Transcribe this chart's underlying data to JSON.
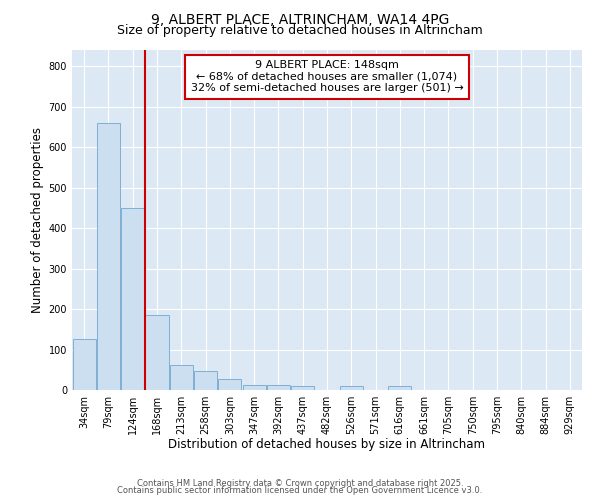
{
  "title1": "9, ALBERT PLACE, ALTRINCHAM, WA14 4PG",
  "title2": "Size of property relative to detached houses in Altrincham",
  "xlabel": "Distribution of detached houses by size in Altrincham",
  "ylabel": "Number of detached properties",
  "categories": [
    "34sqm",
    "79sqm",
    "124sqm",
    "168sqm",
    "213sqm",
    "258sqm",
    "303sqm",
    "347sqm",
    "392sqm",
    "437sqm",
    "482sqm",
    "526sqm",
    "571sqm",
    "616sqm",
    "661sqm",
    "705sqm",
    "750sqm",
    "795sqm",
    "840sqm",
    "884sqm",
    "929sqm"
  ],
  "values": [
    125,
    660,
    450,
    185,
    62,
    46,
    27,
    12,
    12,
    9,
    0,
    9,
    0,
    9,
    0,
    0,
    0,
    0,
    0,
    0,
    0
  ],
  "bar_color": "#ccdff0",
  "bar_edge_color": "#7eb0d4",
  "red_line_x": 2.5,
  "annotation_title": "9 ALBERT PLACE: 148sqm",
  "annotation_line1": "← 68% of detached houses are smaller (1,074)",
  "annotation_line2": "32% of semi-detached houses are larger (501) →",
  "annotation_box_color": "#ffffff",
  "annotation_box_edge": "#cc0000",
  "red_line_color": "#cc0000",
  "ylim": [
    0,
    840
  ],
  "yticks": [
    0,
    100,
    200,
    300,
    400,
    500,
    600,
    700,
    800
  ],
  "bg_color": "#dce9f5",
  "grid_color": "#ffffff",
  "footer1": "Contains HM Land Registry data © Crown copyright and database right 2025.",
  "footer2": "Contains public sector information licensed under the Open Government Licence v3.0.",
  "title_fontsize": 10,
  "subtitle_fontsize": 9,
  "axis_label_fontsize": 8.5,
  "tick_fontsize": 7,
  "ann_fontsize": 8,
  "footer_fontsize": 6
}
